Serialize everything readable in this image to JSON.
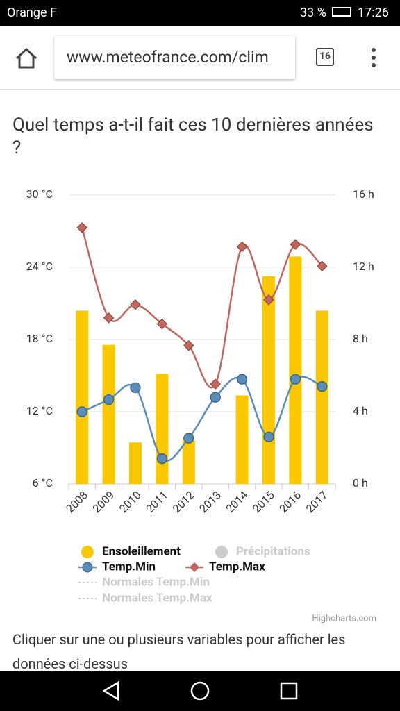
{
  "status_bar": {
    "carrier": "Orange F",
    "battery": "33 %",
    "time": "17:26"
  },
  "browser": {
    "url": "www.meteofrance.com/clim",
    "tabs": "16"
  },
  "page": {
    "heading": "Quel temps a-t-il fait ces 10 dernières années ?",
    "credits": "Highcharts.com",
    "footer": "Cliquer sur une ou plusieurs variables pour afficher les données ci-dessus"
  },
  "chart_data": {
    "type": "combo",
    "categories": [
      "2008",
      "2009",
      "2010",
      "2011",
      "2012",
      "2013",
      "2014",
      "2015",
      "2016",
      "2017"
    ],
    "ylim": [
      6,
      30
    ],
    "yticks": [
      {
        "value": 6,
        "label": "6 °C"
      },
      {
        "value": 12,
        "label": "12 °C"
      },
      {
        "value": 18,
        "label": "18 °C"
      },
      {
        "value": 24,
        "label": "24 °C"
      },
      {
        "value": 30,
        "label": "30 °C"
      }
    ],
    "y2lim": [
      0,
      16
    ],
    "y2ticks": [
      {
        "value": 0,
        "label": "0 h"
      },
      {
        "value": 4,
        "label": "4 h"
      },
      {
        "value": 8,
        "label": "8 h"
      },
      {
        "value": 12,
        "label": "12 h"
      },
      {
        "value": 16,
        "label": "16 h"
      }
    ],
    "grid": true,
    "series": [
      {
        "name": "Ensoleillement",
        "type": "bar",
        "axis": "y2",
        "color": "#f9c800",
        "values": [
          9.6,
          7.7,
          2.3,
          6.1,
          2.4,
          null,
          4.9,
          11.5,
          12.6,
          9.6
        ]
      },
      {
        "name": "Temp.Min",
        "type": "line",
        "color": "#5b8db8",
        "values": [
          12.0,
          13.0,
          14.0,
          8.1,
          9.8,
          13.2,
          14.7,
          9.9,
          14.7,
          14.1
        ]
      },
      {
        "name": "Temp.Max",
        "type": "line",
        "color": "#c0675f",
        "values": [
          27.3,
          19.8,
          20.9,
          19.3,
          17.5,
          14.3,
          25.7,
          21.3,
          25.9,
          24.1
        ]
      }
    ],
    "hidden_series": [
      "Précipitations",
      "Normales Temp.Min",
      "Normales Temp.Max"
    ]
  }
}
